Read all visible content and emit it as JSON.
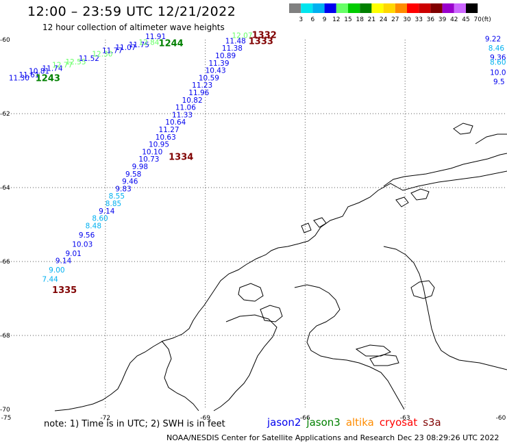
{
  "header": {
    "title": "12:00 – 23:59 UTC 12/21/2022",
    "subtitle": "12 hour collection of altimeter wave heights"
  },
  "legend": {
    "unit": "(ft)",
    "bins": [
      {
        "label": "3",
        "color": "#808080"
      },
      {
        "label": "6",
        "color": "#00e5ee"
      },
      {
        "label": "9",
        "color": "#00b0f0"
      },
      {
        "label": "12",
        "color": "#0000ee"
      },
      {
        "label": "15",
        "color": "#66ff66"
      },
      {
        "label": "18",
        "color": "#00cc00"
      },
      {
        "label": "21",
        "color": "#008000"
      },
      {
        "label": "24",
        "color": "#ffff00"
      },
      {
        "label": "27",
        "color": "#ffd700"
      },
      {
        "label": "30",
        "color": "#ff8c00"
      },
      {
        "label": "33",
        "color": "#ff0000"
      },
      {
        "label": "36",
        "color": "#cc0000"
      },
      {
        "label": "39",
        "color": "#800000"
      },
      {
        "label": "42",
        "color": "#9900cc"
      },
      {
        "label": "45",
        "color": "#cc66ff"
      },
      {
        "label": "70",
        "color": "#000000"
      }
    ]
  },
  "map": {
    "lon_ticks": [
      {
        "label": "-75",
        "value": -75
      },
      {
        "label": "-72",
        "value": -72
      },
      {
        "label": "-69",
        "value": -69
      },
      {
        "label": "-66",
        "value": -66
      },
      {
        "label": "-63",
        "value": -63
      },
      {
        "label": "-60",
        "value": -60
      }
    ],
    "lat_ticks": [
      {
        "label": "-60",
        "value": -60
      },
      {
        "label": "-62",
        "value": -62
      },
      {
        "label": "-64",
        "value": -64
      },
      {
        "label": "-66",
        "value": -66
      },
      {
        "label": "-68",
        "value": -68
      },
      {
        "label": "-70",
        "value": -70
      }
    ],
    "grid": true,
    "pass_times": [
      {
        "label": "1243",
        "color": "#008000",
        "lon": -74.1,
        "lat": -61.12
      },
      {
        "label": "1244",
        "color": "#008000",
        "lon": -70.4,
        "lat": -60.18
      },
      {
        "label": "1332",
        "color": "#800000",
        "lon": -67.6,
        "lat": -59.95
      },
      {
        "label": "1333",
        "color": "#800000",
        "lon": -67.7,
        "lat": -60.12
      },
      {
        "label": "1334",
        "color": "#800000",
        "lon": -70.1,
        "lat": -63.25
      },
      {
        "label": "1335",
        "color": "#800000",
        "lon": -73.6,
        "lat": -66.85
      }
    ],
    "observations": [
      {
        "label": "11.30",
        "color": "#0000ee",
        "lon": -74.9,
        "lat": -61.1
      },
      {
        "label": "11.61",
        "color": "#0000ee",
        "lon": -74.6,
        "lat": -61.02
      },
      {
        "label": "10.81",
        "color": "#0000ee",
        "lon": -74.3,
        "lat": -60.92
      },
      {
        "label": "11.74",
        "color": "#0000ee",
        "lon": -73.9,
        "lat": -60.84
      },
      {
        "label": "12.77",
        "color": "#66ff66",
        "lon": -73.6,
        "lat": -60.75
      },
      {
        "label": "12.55",
        "color": "#66ff66",
        "lon": -73.2,
        "lat": -60.67
      },
      {
        "label": "11.52",
        "color": "#0000ee",
        "lon": -72.8,
        "lat": -60.57
      },
      {
        "label": "12.30",
        "color": "#66ff66",
        "lon": -72.4,
        "lat": -60.45
      },
      {
        "label": "11.77",
        "color": "#0000ee",
        "lon": -72.1,
        "lat": -60.36
      },
      {
        "label": "11.07",
        "color": "#0000ee",
        "lon": -71.7,
        "lat": -60.28
      },
      {
        "label": "11.75",
        "color": "#0000ee",
        "lon": -71.3,
        "lat": -60.2
      },
      {
        "label": "12.84",
        "color": "#66ff66",
        "lon": -71.0,
        "lat": -60.14
      },
      {
        "label": "11.91",
        "color": "#0000ee",
        "lon": -70.8,
        "lat": -59.98
      },
      {
        "label": "12.07",
        "color": "#66ff66",
        "lon": -68.2,
        "lat": -59.95
      },
      {
        "label": "11.48",
        "color": "#0000ee",
        "lon": -68.4,
        "lat": -60.1
      },
      {
        "label": "11.38",
        "color": "#0000ee",
        "lon": -68.5,
        "lat": -60.3
      },
      {
        "label": "10.89",
        "color": "#0000ee",
        "lon": -68.7,
        "lat": -60.5
      },
      {
        "label": "11.39",
        "color": "#0000ee",
        "lon": -68.9,
        "lat": -60.7
      },
      {
        "label": "10.43",
        "color": "#0000ee",
        "lon": -69.0,
        "lat": -60.9
      },
      {
        "label": "10.59",
        "color": "#0000ee",
        "lon": -69.2,
        "lat": -61.1
      },
      {
        "label": "11.23",
        "color": "#0000ee",
        "lon": -69.4,
        "lat": -61.3
      },
      {
        "label": "11.96",
        "color": "#0000ee",
        "lon": -69.5,
        "lat": -61.5
      },
      {
        "label": "10.82",
        "color": "#0000ee",
        "lon": -69.7,
        "lat": -61.7
      },
      {
        "label": "11.06",
        "color": "#0000ee",
        "lon": -69.9,
        "lat": -61.9
      },
      {
        "label": "11.33",
        "color": "#0000ee",
        "lon": -70.0,
        "lat": -62.1
      },
      {
        "label": "10.64",
        "color": "#0000ee",
        "lon": -70.2,
        "lat": -62.3
      },
      {
        "label": "11.27",
        "color": "#0000ee",
        "lon": -70.4,
        "lat": -62.5
      },
      {
        "label": "10.63",
        "color": "#0000ee",
        "lon": -70.5,
        "lat": -62.7
      },
      {
        "label": "10.95",
        "color": "#0000ee",
        "lon": -70.7,
        "lat": -62.9
      },
      {
        "label": "10.10",
        "color": "#0000ee",
        "lon": -70.9,
        "lat": -63.1
      },
      {
        "label": "10.73",
        "color": "#0000ee",
        "lon": -71.0,
        "lat": -63.3
      },
      {
        "label": "9.98",
        "color": "#0000ee",
        "lon": -71.2,
        "lat": -63.5
      },
      {
        "label": "9.58",
        "color": "#0000ee",
        "lon": -71.4,
        "lat": -63.7
      },
      {
        "label": "9.46",
        "color": "#0000ee",
        "lon": -71.5,
        "lat": -63.9
      },
      {
        "label": "9.83",
        "color": "#0000ee",
        "lon": -71.7,
        "lat": -64.1
      },
      {
        "label": "8.55",
        "color": "#00b0f0",
        "lon": -71.9,
        "lat": -64.3
      },
      {
        "label": "8.85",
        "color": "#00b0f0",
        "lon": -72.0,
        "lat": -64.5
      },
      {
        "label": "9.14",
        "color": "#0000ee",
        "lon": -72.2,
        "lat": -64.7
      },
      {
        "label": "8.60",
        "color": "#00b0f0",
        "lon": -72.4,
        "lat": -64.9
      },
      {
        "label": "8.48",
        "color": "#00b0f0",
        "lon": -72.6,
        "lat": -65.1
      },
      {
        "label": "9.56",
        "color": "#0000ee",
        "lon": -72.8,
        "lat": -65.35
      },
      {
        "label": "10.03",
        "color": "#0000ee",
        "lon": -73.0,
        "lat": -65.6
      },
      {
        "label": "9.01",
        "color": "#0000ee",
        "lon": -73.2,
        "lat": -65.85
      },
      {
        "label": "9.14",
        "color": "#0000ee",
        "lon": -73.5,
        "lat": -66.05
      },
      {
        "label": "9.00",
        "color": "#00b0f0",
        "lon": -73.7,
        "lat": -66.3
      },
      {
        "label": "7.44",
        "color": "#00b0f0",
        "lon": -73.9,
        "lat": -66.55
      },
      {
        "label": "9.22",
        "color": "#0000ee",
        "lon": -60.6,
        "lat": -60.05
      },
      {
        "label": "8.46",
        "color": "#00b0f0",
        "lon": -60.5,
        "lat": -60.3
      },
      {
        "label": "9.36",
        "color": "#0000ee",
        "lon": -60.45,
        "lat": -60.55
      },
      {
        "label": "8.60",
        "color": "#00b0f0",
        "lon": -60.45,
        "lat": -60.68
      },
      {
        "label": "10.0",
        "color": "#0000ee",
        "lon": -60.45,
        "lat": -60.95
      },
      {
        "label": "9.5",
        "color": "#0000ee",
        "lon": -60.35,
        "lat": -61.2
      }
    ]
  },
  "footer": {
    "note": "note:  1) Time is in UTC;  2) SWH is in feet",
    "satellites": [
      {
        "name": "jason2",
        "color": "#0000ee"
      },
      {
        "name": "jason3",
        "color": "#008000"
      },
      {
        "name": "altika",
        "color": "#ff8c00"
      },
      {
        "name": "cryosat",
        "color": "#ff0000"
      },
      {
        "name": "s3a",
        "color": "#800000"
      }
    ],
    "credit": "NOAA/NESDIS Center for Satellite Applications and Research",
    "timestamp": "Dec 23 08:29:26 UTC 2022"
  }
}
